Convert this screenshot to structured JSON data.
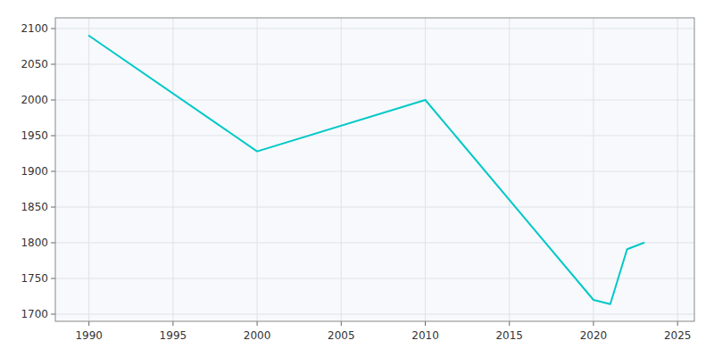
{
  "chart_data": {
    "type": "line",
    "x": [
      1990,
      2000,
      2010,
      2020,
      2021,
      2022,
      2023
    ],
    "values": [
      2090,
      1928,
      2000,
      1720,
      1714,
      1791,
      1800
    ],
    "color": "#00C8C8",
    "xlim": [
      1988,
      2026
    ],
    "ylim": [
      1690,
      2115
    ],
    "xticks": [
      1990,
      1995,
      2000,
      2005,
      2010,
      2015,
      2020,
      2025
    ],
    "yticks": [
      1700,
      1750,
      1800,
      1850,
      1900,
      1950,
      2000,
      2050,
      2100
    ],
    "grid": true
  }
}
